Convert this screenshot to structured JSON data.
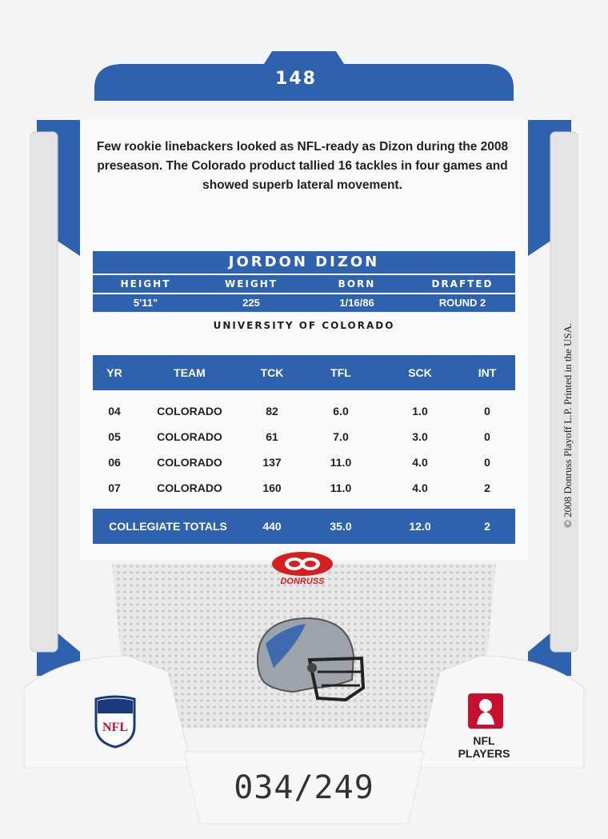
{
  "card": {
    "number": "148",
    "bio": "Few rookie linebackers looked as NFL-ready as Dizon during the 2008 preseason. The Colorado product tallied 16 tackles in four games and showed superb lateral movement.",
    "copyright": "© 2008 Donruss Playoff L.P. Printed in the USA.",
    "serial": "034/249",
    "brand": "DONRUSS",
    "nfl_shield": "NFL",
    "nfl_players": "NFL PLAYERS",
    "colors": {
      "primary_blue": "#2e62ae",
      "donruss_red": "#d42020"
    }
  },
  "player": {
    "name": "JORDON DIZON",
    "vitals_headers": [
      "HEIGHT",
      "WEIGHT",
      "BORN",
      "DRAFTED"
    ],
    "vitals_values": [
      "5'11\"",
      "225",
      "1/16/86",
      "ROUND 2"
    ],
    "college": "UNIVERSITY OF COLORADO"
  },
  "stats": {
    "headers": [
      "YR",
      "TEAM",
      "TCK",
      "TFL",
      "SCK",
      "INT"
    ],
    "rows": [
      [
        "04",
        "COLORADO",
        "82",
        "6.0",
        "1.0",
        "0"
      ],
      [
        "05",
        "COLORADO",
        "61",
        "7.0",
        "3.0",
        "0"
      ],
      [
        "06",
        "COLORADO",
        "137",
        "11.0",
        "4.0",
        "0"
      ],
      [
        "07",
        "COLORADO",
        "160",
        "11.0",
        "4.0",
        "2"
      ]
    ],
    "totals": {
      "label": "COLLEGIATE TOTALS",
      "tck": "440",
      "tfl": "35.0",
      "sck": "12.0",
      "int": "2"
    }
  }
}
